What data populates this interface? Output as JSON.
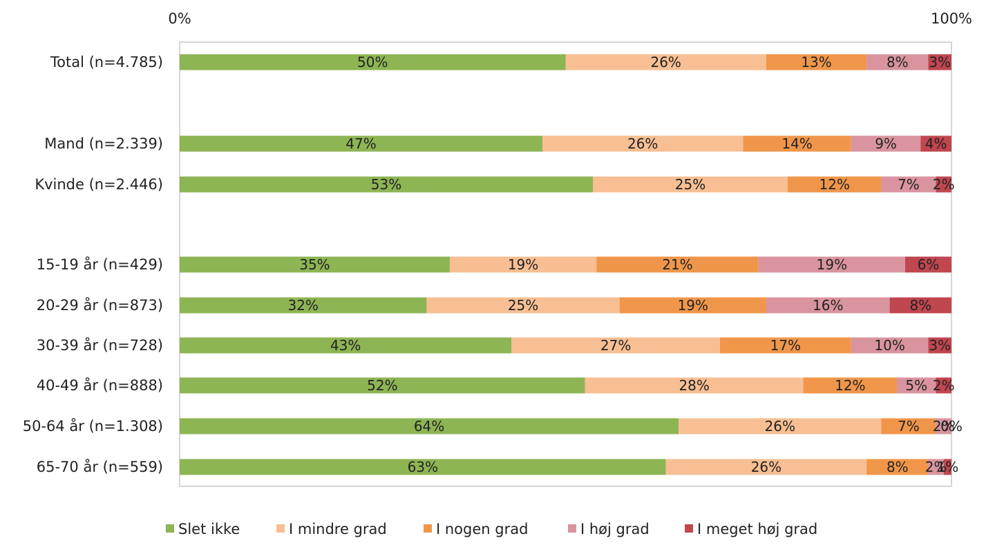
{
  "chart_data": {
    "type": "bar",
    "orientation": "horizontal",
    "stacked": true,
    "percent_stacked": true,
    "title": "",
    "xlabel": "",
    "ylabel": "",
    "xlim": [
      0,
      100
    ],
    "x_tick_labels": [
      "0%",
      "100%"
    ],
    "grid": false,
    "legend_position": "bottom",
    "categories": [
      "Total (n=4.785)",
      "Mand (n=2.339)",
      "Kvinde (n=2.446)",
      "15-19 år (n=429)",
      "20-29 år (n=873)",
      "30-39 år (n=728)",
      "40-49 år (n=888)",
      "50-64 år (n=1.308)",
      "65-70 år (n=559)"
    ],
    "series": [
      {
        "name": "Slet ikke",
        "color": "#8db554",
        "values": [
          50,
          47,
          53,
          35,
          32,
          43,
          52,
          64,
          63
        ],
        "labels": [
          "50%",
          "47%",
          "53%",
          "35%",
          "32%",
          "43%",
          "52%",
          "64%",
          "63%"
        ]
      },
      {
        "name": "I mindre grad",
        "color": "#f7bf93",
        "values": [
          26,
          26,
          25,
          19,
          25,
          27,
          28,
          26,
          26
        ],
        "labels": [
          "26%",
          "26%",
          "25%",
          "19%",
          "25%",
          "27%",
          "28%",
          "26%",
          "26%"
        ]
      },
      {
        "name": "I nogen grad",
        "color": "#f0964a",
        "values": [
          13,
          14,
          12,
          21,
          19,
          17,
          12,
          7,
          8
        ],
        "labels": [
          "13%",
          "14%",
          "12%",
          "21%",
          "19%",
          "17%",
          "12%",
          "7%",
          "8%"
        ]
      },
      {
        "name": "I høj grad",
        "color": "#d9949f",
        "values": [
          8,
          9,
          7,
          19,
          16,
          10,
          5,
          2,
          2
        ],
        "labels": [
          "8%",
          "9%",
          "7%",
          "19%",
          "16%",
          "10%",
          "5%",
          "2%",
          "2%"
        ]
      },
      {
        "name": "I meget høj grad",
        "color": "#c0464f",
        "values": [
          3,
          4,
          2,
          6,
          8,
          3,
          2,
          0,
          1
        ],
        "labels": [
          "3%",
          "4%",
          "2%",
          "6%",
          "8%",
          "3%",
          "2%",
          "0%",
          "1%"
        ]
      }
    ]
  }
}
